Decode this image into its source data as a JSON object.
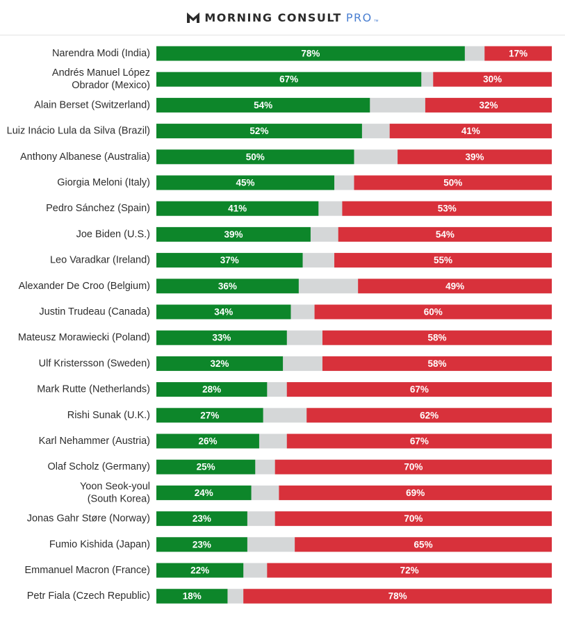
{
  "header": {
    "brand": "MORNING CONSULT",
    "brand_suffix": "PRO",
    "trademark": "™",
    "logo_icon": "morning-consult-m-logo"
  },
  "colors": {
    "approve": "#0d862a",
    "unsure": "#d5d7d8",
    "disapprove": "#d8313b"
  },
  "chart_data": {
    "type": "bar",
    "orientation": "horizontal",
    "stacked": true,
    "title": "",
    "xlabel": "",
    "ylabel": "",
    "xlim": [
      0,
      100
    ],
    "grid": false,
    "legend": "none",
    "categories": [
      [
        "Narendra Modi (India)"
      ],
      [
        "Andrés Manuel López",
        "Obrador (Mexico)"
      ],
      [
        "Alain Berset (Switzerland)"
      ],
      [
        "Luiz Inácio Lula da Silva (Brazil)"
      ],
      [
        "Anthony Albanese (Australia)"
      ],
      [
        "Giorgia Meloni (Italy)"
      ],
      [
        "Pedro Sánchez (Spain)"
      ],
      [
        "Joe Biden (U.S.)"
      ],
      [
        "Leo Varadkar (Ireland)"
      ],
      [
        "Alexander De Croo (Belgium)"
      ],
      [
        "Justin Trudeau (Canada)"
      ],
      [
        "Mateusz Morawiecki (Poland)"
      ],
      [
        "Ulf Kristersson (Sweden)"
      ],
      [
        "Mark Rutte (Netherlands)"
      ],
      [
        "Rishi Sunak (U.K.)"
      ],
      [
        "Karl Nehammer (Austria)"
      ],
      [
        "Olaf Scholz (Germany)"
      ],
      [
        "Yoon Seok-youl",
        "(South Korea)"
      ],
      [
        "Jonas Gahr Støre (Norway)"
      ],
      [
        "Fumio Kishida (Japan)"
      ],
      [
        "Emmanuel Macron (France)"
      ],
      [
        "Petr Fiala (Czech Republic)"
      ]
    ],
    "series": [
      {
        "values": [
          78,
          67,
          54,
          52,
          50,
          45,
          41,
          39,
          37,
          36,
          34,
          33,
          32,
          28,
          27,
          26,
          25,
          24,
          23,
          23,
          22,
          18
        ]
      },
      {
        "values": [
          17,
          30,
          32,
          41,
          39,
          50,
          53,
          54,
          55,
          49,
          60,
          58,
          58,
          67,
          62,
          67,
          70,
          69,
          70,
          65,
          72,
          78
        ]
      }
    ],
    "value_suffix": "%"
  }
}
